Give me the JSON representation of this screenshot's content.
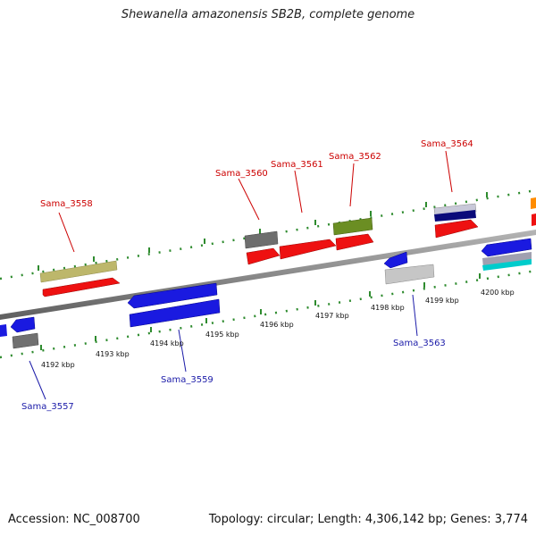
{
  "title": "Shewanella amazonensis SB2B, complete genome",
  "footer": {
    "accession": "Accession: NC_008700",
    "summary": "Topology: circular; Length: 4,306,142 bp; Genes: 3,774"
  },
  "colors": {
    "backbone": "#8a8a8a",
    "tick": "#2e8b2e",
    "plus_label": "#cc0000",
    "minus_label": "#1a1aa8"
  },
  "position_labels": [
    "4192 kbp",
    "4193 kbp",
    "4194 kbp",
    "4195 kbp",
    "4196 kbp",
    "4197 kbp",
    "4198 kbp",
    "4199 kbp",
    "4200 kbp"
  ],
  "gene_labels": {
    "plus": [
      "Sama_3558",
      "Sama_3560",
      "Sama_3561",
      "Sama_3562",
      "Sama_3564"
    ],
    "minus": [
      "Sama_3557",
      "Sama_3559",
      "Sama_3563"
    ]
  }
}
